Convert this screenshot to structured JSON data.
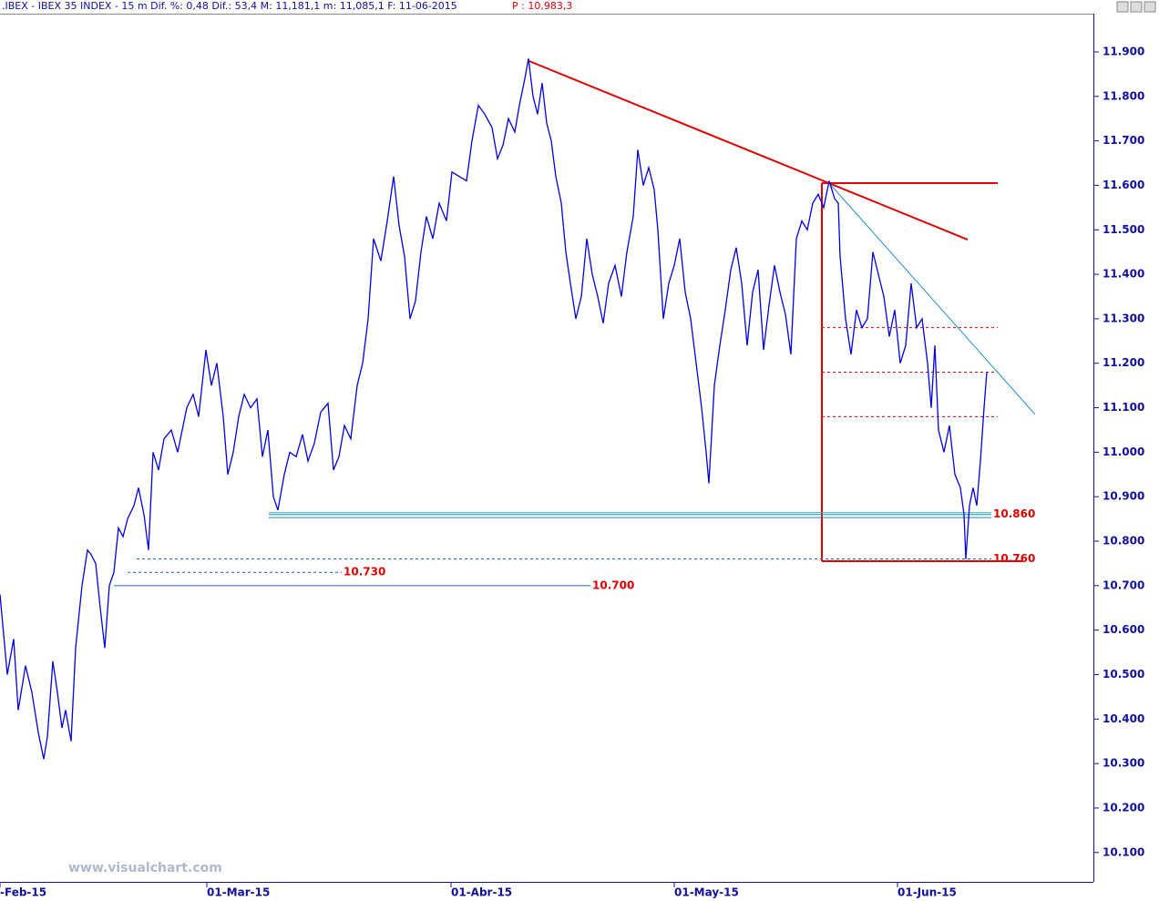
{
  "chart_data": {
    "type": "line",
    "title": ".IBEX - IBEX 35 INDEX -  15 m Dif. %: 0,48 Dif.: 53,4 M: 11,181,1 m: 11,085,1 F: 11-06-2015",
    "subtitle": "P : 10,983,3",
    "watermark": "www.visualchart.com",
    "xlim": [
      0,
      120
    ],
    "ylim": [
      10034,
      11986
    ],
    "xticks": [
      {
        "value": 0,
        "label": "-Feb-15"
      },
      {
        "value": 22.7,
        "label": "01-Mar-15"
      },
      {
        "value": 49.5,
        "label": "01-Abr-15"
      },
      {
        "value": 74,
        "label": "01-May-15"
      },
      {
        "value": 98.5,
        "label": "01-Jun-15"
      }
    ],
    "yticks": [
      {
        "value": 11900,
        "label": "11.900"
      },
      {
        "value": 11800,
        "label": "11.800"
      },
      {
        "value": 11700,
        "label": "11.700"
      },
      {
        "value": 11600,
        "label": "11.600"
      },
      {
        "value": 11500,
        "label": "11.500"
      },
      {
        "value": 11400,
        "label": "11.400"
      },
      {
        "value": 11300,
        "label": "11.300"
      },
      {
        "value": 11200,
        "label": "11.200"
      },
      {
        "value": 11100,
        "label": "11.100"
      },
      {
        "value": 11000,
        "label": "11.000"
      },
      {
        "value": 10900,
        "label": "10.900"
      },
      {
        "value": 10800,
        "label": "10.800"
      },
      {
        "value": 10700,
        "label": "10.700"
      },
      {
        "value": 10600,
        "label": "10.600"
      },
      {
        "value": 10500,
        "label": "10.500"
      },
      {
        "value": 10400,
        "label": "10.400"
      },
      {
        "value": 10300,
        "label": "10.300"
      },
      {
        "value": 10200,
        "label": "10.200"
      },
      {
        "value": 10100,
        "label": "10.100"
      }
    ],
    "series": [
      {
        "name": "IBEX 35",
        "color": "#0000e6",
        "x": [
          0,
          0.8,
          1.5,
          2,
          2.8,
          3.5,
          4.2,
          4.8,
          5.2,
          5.8,
          6.3,
          6.8,
          7.2,
          7.8,
          8.3,
          9,
          9.6,
          10,
          10.5,
          11,
          11.5,
          12,
          12.5,
          13,
          13.5,
          14,
          14.7,
          15.2,
          15.8,
          16.3,
          16.8,
          17.4,
          18,
          18.8,
          19.5,
          20.5,
          21.2,
          21.8,
          22.6,
          23.2,
          23.8,
          24.5,
          25,
          25.6,
          26.2,
          26.8,
          27.5,
          28.2,
          28.8,
          29.4,
          30,
          30.5,
          31.2,
          31.8,
          32.5,
          33.2,
          33.8,
          34.5,
          35.2,
          36,
          36.6,
          37.2,
          37.8,
          38.5,
          39.2,
          39.8,
          40.4,
          41,
          41.8,
          42.5,
          43.2,
          43.8,
          44.4,
          45,
          45.6,
          46.2,
          46.8,
          47.5,
          48.2,
          49,
          49.6,
          50.4,
          51.2,
          51.8,
          52.5,
          53.2,
          54,
          54.6,
          55.2,
          55.8,
          56.5,
          57,
          57.6,
          58,
          58.5,
          59,
          59.5,
          60,
          60.5,
          61,
          61.6,
          62.1,
          62.6,
          63.2,
          63.8,
          64.4,
          65,
          65.6,
          66.2,
          66.8,
          67.5,
          68.2,
          68.8,
          69.5,
          70,
          70.6,
          71.2,
          71.8,
          72.2,
          72.8,
          73.4,
          74,
          74.6,
          75.2,
          75.8,
          76.4,
          77,
          77.5,
          77.8,
          78.4,
          79,
          79.6,
          80.2,
          80.8,
          81.4,
          82,
          82.6,
          83.2,
          83.8,
          84.4,
          85,
          85.6,
          86.2,
          86.8,
          87.4,
          88,
          88.6,
          89.2,
          89.8,
          90.4,
          91,
          91.6,
          92,
          92.2,
          92.8,
          93.4,
          94,
          94.6,
          95.2,
          95.8,
          96.4,
          97,
          97.6,
          98.2,
          98.8,
          99.4,
          100,
          100.6,
          101.2,
          101.8,
          102.2,
          102.6,
          103,
          103.6,
          104.2,
          104.8,
          105.4,
          105.8,
          106,
          106.4,
          106.8,
          107.2,
          107.6,
          108,
          108.3
        ],
        "values": [
          10680,
          10500,
          10580,
          10420,
          10520,
          10460,
          10370,
          10310,
          10360,
          10530,
          10460,
          10380,
          10420,
          10350,
          10560,
          10700,
          10780,
          10770,
          10750,
          10650,
          10560,
          10700,
          10730,
          10830,
          10810,
          10850,
          10880,
          10920,
          10860,
          10780,
          11000,
          10960,
          11030,
          11050,
          11000,
          11100,
          11130,
          11080,
          11230,
          11150,
          11200,
          11080,
          10950,
          11000,
          11080,
          11130,
          11100,
          11120,
          10990,
          11050,
          10900,
          10870,
          10950,
          11000,
          10990,
          11040,
          10980,
          11020,
          11090,
          11110,
          10960,
          10990,
          11060,
          11030,
          11150,
          11200,
          11300,
          11480,
          11430,
          11520,
          11620,
          11510,
          11440,
          11300,
          11340,
          11450,
          11530,
          11480,
          11560,
          11520,
          11630,
          11620,
          11610,
          11700,
          11780,
          11760,
          11730,
          11660,
          11690,
          11750,
          11720,
          11780,
          11840,
          11885,
          11800,
          11760,
          11830,
          11740,
          11700,
          11620,
          11560,
          11450,
          11380,
          11300,
          11350,
          11480,
          11400,
          11350,
          11290,
          11380,
          11420,
          11350,
          11450,
          11530,
          11680,
          11600,
          11640,
          11590,
          11500,
          11300,
          11380,
          11420,
          11480,
          11360,
          11300,
          11200,
          11100,
          11000,
          10930,
          11150,
          11240,
          11320,
          11410,
          11460,
          11380,
          11240,
          11360,
          11410,
          11230,
          11330,
          11420,
          11360,
          11310,
          11220,
          11480,
          11520,
          11500,
          11560,
          11580,
          11550,
          11610,
          11570,
          11560,
          11440,
          11300,
          11220,
          11320,
          11280,
          11300,
          11450,
          11400,
          11350,
          11260,
          11320,
          11200,
          11240,
          11380,
          11280,
          11300,
          11200,
          11100,
          11240,
          11050,
          11000,
          11060,
          10950,
          10920,
          10860,
          10760,
          10880,
          10920,
          10880,
          10980,
          11100,
          11180
        ]
      }
    ],
    "lines": [
      {
        "x": [
          58,
          106.2
        ],
        "y": [
          11880,
          11478
        ],
        "color": "#e00000",
        "width": 2
      },
      {
        "x": [
          90.2,
          109.5
        ],
        "y": [
          11605,
          11605
        ],
        "color": "#e00000",
        "width": 2
      },
      {
        "x": [
          90.2,
          90.2
        ],
        "y": [
          11605,
          10755
        ],
        "color": "#e00000",
        "width": 2
      },
      {
        "x": [
          90.2,
          112.2
        ],
        "y": [
          10755,
          10755
        ],
        "color": "#e00000",
        "width": 2
      },
      {
        "x": [
          90.2,
          109.5
        ],
        "y": [
          11280,
          11280
        ],
        "color": "#e00000",
        "width": 1,
        "dash": true
      },
      {
        "x": [
          90.2,
          109.5
        ],
        "y": [
          11180,
          11180
        ],
        "color": "#e00000",
        "width": 1,
        "dash": true
      },
      {
        "x": [
          90.2,
          109.5
        ],
        "y": [
          11080,
          11080
        ],
        "color": "#e00000",
        "width": 1,
        "dash": true
      },
      {
        "x": [
          91,
          113.6
        ],
        "y": [
          11605,
          11085
        ],
        "color": "#2090d0",
        "width": 1
      },
      {
        "x": [
          29.5,
          108.8
        ],
        "y": [
          10864,
          10864
        ],
        "color": "#30b0c0",
        "width": 1
      },
      {
        "x": [
          29.5,
          108.8
        ],
        "y": [
          10853,
          10853
        ],
        "color": "#2080c0",
        "width": 1
      }
    ],
    "levels": [
      {
        "value": 10860,
        "label": "10.860",
        "x": [
          29.5,
          108.8
        ],
        "color": "#2080c0"
      },
      {
        "value": 10760,
        "label": "10.760",
        "x": [
          15,
          108.8
        ],
        "color": "#2060b0",
        "dash": true
      },
      {
        "value": 10730,
        "label": "10.730",
        "x": [
          14,
          37.5
        ],
        "color": "#2060b0",
        "dash": true
      },
      {
        "value": 10700,
        "label": "10.700",
        "x": [
          12.5,
          64.8
        ],
        "color": "#2060b0"
      }
    ]
  }
}
